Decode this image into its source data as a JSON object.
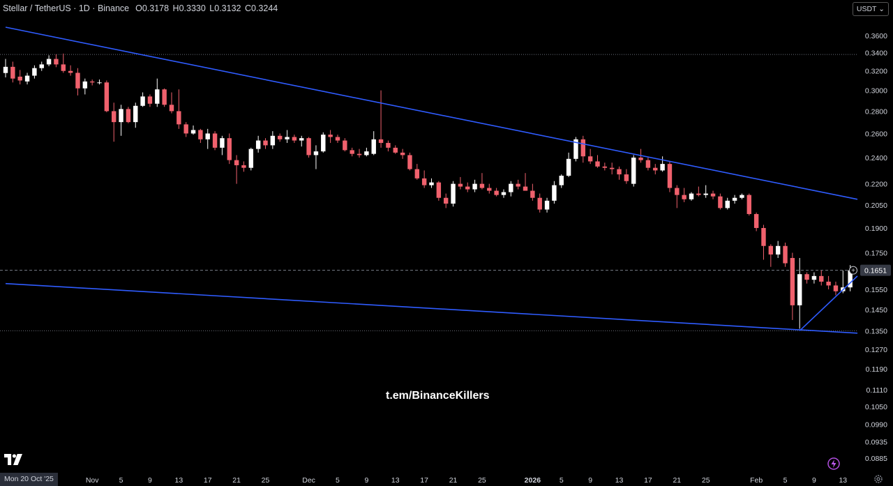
{
  "header": {
    "symbol": "Stellar / TetherUS",
    "interval": "1D",
    "exchange": "Binance",
    "open_label": "O",
    "open": "0.3178",
    "high_label": "H",
    "high": "0.3330",
    "low_label": "L",
    "low": "0.3132",
    "close_label": "C",
    "close": "0.3244"
  },
  "currency_button": "USDT",
  "watermark": "t.em/BinanceKillers",
  "date_chip": "Mon 20 Oct '25",
  "colors": {
    "up": "#ffffff",
    "down": "#f0616d",
    "trendline": "#2f5cff",
    "background": "#000000"
  },
  "icons": [
    "tradingview-logo-icon",
    "plus-circle-icon",
    "lightning-icon",
    "settings-icon"
  ],
  "chart_data": {
    "type": "candlestick",
    "title": "Stellar / TetherUS · 1D · Binance",
    "y_scale": "log",
    "ylim": [
      0.0875,
      0.37
    ],
    "y_ticks": [
      "0.3600",
      "0.3400",
      "0.3200",
      "0.3000",
      "0.2800",
      "0.2600",
      "0.2400",
      "0.2200",
      "0.2050",
      "0.1900",
      "0.1750",
      "0.1550",
      "0.1450",
      "0.1350",
      "0.1270",
      "0.1190",
      "0.1110",
      "0.1050",
      "0.0990",
      "0.0935",
      "0.0885"
    ],
    "x_ticks": [
      {
        "label": "Nov",
        "date": "2025-11-01"
      },
      {
        "label": "5",
        "date": "2025-11-05"
      },
      {
        "label": "9",
        "date": "2025-11-09"
      },
      {
        "label": "13",
        "date": "2025-11-13"
      },
      {
        "label": "17",
        "date": "2025-11-17"
      },
      {
        "label": "21",
        "date": "2025-11-21"
      },
      {
        "label": "25",
        "date": "2025-11-25"
      },
      {
        "label": "Dec",
        "date": "2025-12-01"
      },
      {
        "label": "5",
        "date": "2025-12-05"
      },
      {
        "label": "9",
        "date": "2025-12-09"
      },
      {
        "label": "13",
        "date": "2025-12-13"
      },
      {
        "label": "17",
        "date": "2025-12-17"
      },
      {
        "label": "21",
        "date": "2025-12-21"
      },
      {
        "label": "25",
        "date": "2025-12-25"
      },
      {
        "label": "2026",
        "date": "2026-01-01"
      },
      {
        "label": "5",
        "date": "2026-01-05"
      },
      {
        "label": "9",
        "date": "2026-01-09"
      },
      {
        "label": "13",
        "date": "2026-01-13"
      },
      {
        "label": "17",
        "date": "2026-01-17"
      },
      {
        "label": "21",
        "date": "2026-01-21"
      },
      {
        "label": "25",
        "date": "2026-01-25"
      },
      {
        "label": "Feb",
        "date": "2026-02-01"
      },
      {
        "label": "5",
        "date": "2026-02-05"
      },
      {
        "label": "9",
        "date": "2026-02-09"
      },
      {
        "label": "13",
        "date": "2026-02-13"
      }
    ],
    "x_range": [
      "2025-10-20",
      "2026-02-15"
    ],
    "price_label": "0.1651",
    "dotted_levels": [
      0.338,
      0.1351
    ],
    "candles": [
      {
        "date": "2025-10-20",
        "o": 0.3178,
        "h": 0.333,
        "l": 0.3132,
        "c": 0.3244
      },
      {
        "date": "2025-10-21",
        "o": 0.3244,
        "h": 0.33,
        "l": 0.308,
        "c": 0.312
      },
      {
        "date": "2025-10-22",
        "o": 0.314,
        "h": 0.321,
        "l": 0.306,
        "c": 0.31
      },
      {
        "date": "2025-10-23",
        "o": 0.309,
        "h": 0.318,
        "l": 0.306,
        "c": 0.315
      },
      {
        "date": "2025-10-24",
        "o": 0.315,
        "h": 0.326,
        "l": 0.312,
        "c": 0.323
      },
      {
        "date": "2025-10-25",
        "o": 0.323,
        "h": 0.33,
        "l": 0.32,
        "c": 0.327
      },
      {
        "date": "2025-10-26",
        "o": 0.327,
        "h": 0.337,
        "l": 0.325,
        "c": 0.333
      },
      {
        "date": "2025-10-27",
        "o": 0.333,
        "h": 0.338,
        "l": 0.324,
        "c": 0.327
      },
      {
        "date": "2025-10-28",
        "o": 0.327,
        "h": 0.339,
        "l": 0.318,
        "c": 0.32
      },
      {
        "date": "2025-10-29",
        "o": 0.32,
        "h": 0.326,
        "l": 0.315,
        "c": 0.318
      },
      {
        "date": "2025-10-30",
        "o": 0.318,
        "h": 0.323,
        "l": 0.295,
        "c": 0.302
      },
      {
        "date": "2025-10-31",
        "o": 0.302,
        "h": 0.312,
        "l": 0.296,
        "c": 0.309
      },
      {
        "date": "2025-11-01",
        "o": 0.309,
        "h": 0.311,
        "l": 0.305,
        "c": 0.308
      },
      {
        "date": "2025-11-02",
        "o": 0.308,
        "h": 0.311,
        "l": 0.306,
        "c": 0.308
      },
      {
        "date": "2025-11-03",
        "o": 0.308,
        "h": 0.31,
        "l": 0.279,
        "c": 0.28
      },
      {
        "date": "2025-11-04",
        "o": 0.28,
        "h": 0.288,
        "l": 0.253,
        "c": 0.27
      },
      {
        "date": "2025-11-05",
        "o": 0.27,
        "h": 0.286,
        "l": 0.258,
        "c": 0.282
      },
      {
        "date": "2025-11-06",
        "o": 0.282,
        "h": 0.284,
        "l": 0.269,
        "c": 0.27
      },
      {
        "date": "2025-11-07",
        "o": 0.27,
        "h": 0.288,
        "l": 0.265,
        "c": 0.285
      },
      {
        "date": "2025-11-08",
        "o": 0.285,
        "h": 0.298,
        "l": 0.284,
        "c": 0.294
      },
      {
        "date": "2025-11-09",
        "o": 0.294,
        "h": 0.296,
        "l": 0.284,
        "c": 0.287
      },
      {
        "date": "2025-11-10",
        "o": 0.287,
        "h": 0.312,
        "l": 0.284,
        "c": 0.301
      },
      {
        "date": "2025-11-11",
        "o": 0.301,
        "h": 0.302,
        "l": 0.284,
        "c": 0.286
      },
      {
        "date": "2025-11-12",
        "o": 0.286,
        "h": 0.298,
        "l": 0.278,
        "c": 0.28
      },
      {
        "date": "2025-11-13",
        "o": 0.28,
        "h": 0.301,
        "l": 0.264,
        "c": 0.268
      },
      {
        "date": "2025-11-14",
        "o": 0.268,
        "h": 0.27,
        "l": 0.257,
        "c": 0.26
      },
      {
        "date": "2025-11-15",
        "o": 0.26,
        "h": 0.267,
        "l": 0.259,
        "c": 0.263
      },
      {
        "date": "2025-11-16",
        "o": 0.263,
        "h": 0.264,
        "l": 0.252,
        "c": 0.255
      },
      {
        "date": "2025-11-17",
        "o": 0.255,
        "h": 0.264,
        "l": 0.247,
        "c": 0.26
      },
      {
        "date": "2025-11-18",
        "o": 0.26,
        "h": 0.262,
        "l": 0.246,
        "c": 0.248
      },
      {
        "date": "2025-11-19",
        "o": 0.248,
        "h": 0.258,
        "l": 0.242,
        "c": 0.256
      },
      {
        "date": "2025-11-20",
        "o": 0.256,
        "h": 0.26,
        "l": 0.235,
        "c": 0.238
      },
      {
        "date": "2025-11-21",
        "o": 0.238,
        "h": 0.242,
        "l": 0.22,
        "c": 0.234
      },
      {
        "date": "2025-11-22",
        "o": 0.234,
        "h": 0.237,
        "l": 0.229,
        "c": 0.232
      },
      {
        "date": "2025-11-23",
        "o": 0.232,
        "h": 0.248,
        "l": 0.23,
        "c": 0.247
      },
      {
        "date": "2025-11-24",
        "o": 0.247,
        "h": 0.258,
        "l": 0.244,
        "c": 0.254
      },
      {
        "date": "2025-11-25",
        "o": 0.254,
        "h": 0.256,
        "l": 0.247,
        "c": 0.25
      },
      {
        "date": "2025-11-26",
        "o": 0.25,
        "h": 0.262,
        "l": 0.247,
        "c": 0.258
      },
      {
        "date": "2025-11-27",
        "o": 0.258,
        "h": 0.26,
        "l": 0.253,
        "c": 0.255
      },
      {
        "date": "2025-11-28",
        "o": 0.255,
        "h": 0.263,
        "l": 0.252,
        "c": 0.257
      },
      {
        "date": "2025-11-29",
        "o": 0.257,
        "h": 0.259,
        "l": 0.252,
        "c": 0.254
      },
      {
        "date": "2025-11-30",
        "o": 0.254,
        "h": 0.258,
        "l": 0.249,
        "c": 0.256
      },
      {
        "date": "2025-12-01",
        "o": 0.256,
        "h": 0.257,
        "l": 0.24,
        "c": 0.242
      },
      {
        "date": "2025-12-02",
        "o": 0.242,
        "h": 0.25,
        "l": 0.231,
        "c": 0.245
      },
      {
        "date": "2025-12-03",
        "o": 0.245,
        "h": 0.261,
        "l": 0.244,
        "c": 0.259
      },
      {
        "date": "2025-12-04",
        "o": 0.259,
        "h": 0.263,
        "l": 0.252,
        "c": 0.257
      },
      {
        "date": "2025-12-05",
        "o": 0.257,
        "h": 0.259,
        "l": 0.252,
        "c": 0.254
      },
      {
        "date": "2025-12-06",
        "o": 0.254,
        "h": 0.256,
        "l": 0.245,
        "c": 0.246
      },
      {
        "date": "2025-12-07",
        "o": 0.246,
        "h": 0.248,
        "l": 0.241,
        "c": 0.243
      },
      {
        "date": "2025-12-08",
        "o": 0.243,
        "h": 0.247,
        "l": 0.24,
        "c": 0.242
      },
      {
        "date": "2025-12-09",
        "o": 0.242,
        "h": 0.248,
        "l": 0.241,
        "c": 0.245
      },
      {
        "date": "2025-12-10",
        "o": 0.243,
        "h": 0.262,
        "l": 0.242,
        "c": 0.255
      },
      {
        "date": "2025-12-11",
        "o": 0.255,
        "h": 0.3,
        "l": 0.248,
        "c": 0.252
      },
      {
        "date": "2025-12-12",
        "o": 0.252,
        "h": 0.254,
        "l": 0.245,
        "c": 0.248
      },
      {
        "date": "2025-12-13",
        "o": 0.248,
        "h": 0.25,
        "l": 0.243,
        "c": 0.244
      },
      {
        "date": "2025-12-14",
        "o": 0.244,
        "h": 0.247,
        "l": 0.239,
        "c": 0.242
      },
      {
        "date": "2025-12-15",
        "o": 0.242,
        "h": 0.244,
        "l": 0.23,
        "c": 0.231
      },
      {
        "date": "2025-12-16",
        "o": 0.231,
        "h": 0.235,
        "l": 0.223,
        "c": 0.224
      },
      {
        "date": "2025-12-17",
        "o": 0.224,
        "h": 0.23,
        "l": 0.217,
        "c": 0.219
      },
      {
        "date": "2025-12-18",
        "o": 0.219,
        "h": 0.224,
        "l": 0.217,
        "c": 0.221
      },
      {
        "date": "2025-12-19",
        "o": 0.221,
        "h": 0.222,
        "l": 0.208,
        "c": 0.21
      },
      {
        "date": "2025-12-20",
        "o": 0.21,
        "h": 0.213,
        "l": 0.203,
        "c": 0.206
      },
      {
        "date": "2025-12-21",
        "o": 0.206,
        "h": 0.222,
        "l": 0.204,
        "c": 0.22
      },
      {
        "date": "2025-12-22",
        "o": 0.22,
        "h": 0.225,
        "l": 0.216,
        "c": 0.218
      },
      {
        "date": "2025-12-23",
        "o": 0.218,
        "h": 0.221,
        "l": 0.214,
        "c": 0.216
      },
      {
        "date": "2025-12-24",
        "o": 0.216,
        "h": 0.223,
        "l": 0.214,
        "c": 0.22
      },
      {
        "date": "2025-12-25",
        "o": 0.22,
        "h": 0.228,
        "l": 0.216,
        "c": 0.217
      },
      {
        "date": "2025-12-26",
        "o": 0.217,
        "h": 0.22,
        "l": 0.213,
        "c": 0.215
      },
      {
        "date": "2025-12-27",
        "o": 0.215,
        "h": 0.217,
        "l": 0.211,
        "c": 0.212
      },
      {
        "date": "2025-12-28",
        "o": 0.212,
        "h": 0.216,
        "l": 0.21,
        "c": 0.214
      },
      {
        "date": "2025-12-29",
        "o": 0.214,
        "h": 0.222,
        "l": 0.211,
        "c": 0.22
      },
      {
        "date": "2025-12-30",
        "o": 0.22,
        "h": 0.223,
        "l": 0.216,
        "c": 0.218
      },
      {
        "date": "2025-12-31",
        "o": 0.218,
        "h": 0.228,
        "l": 0.216,
        "c": 0.215
      },
      {
        "date": "2026-01-01",
        "o": 0.215,
        "h": 0.22,
        "l": 0.208,
        "c": 0.21
      },
      {
        "date": "2026-01-02",
        "o": 0.21,
        "h": 0.213,
        "l": 0.2,
        "c": 0.202
      },
      {
        "date": "2026-01-03",
        "o": 0.202,
        "h": 0.21,
        "l": 0.2,
        "c": 0.208
      },
      {
        "date": "2026-01-04",
        "o": 0.208,
        "h": 0.222,
        "l": 0.206,
        "c": 0.219
      },
      {
        "date": "2026-01-05",
        "o": 0.219,
        "h": 0.227,
        "l": 0.217,
        "c": 0.226
      },
      {
        "date": "2026-01-06",
        "o": 0.226,
        "h": 0.244,
        "l": 0.225,
        "c": 0.239
      },
      {
        "date": "2026-01-07",
        "o": 0.239,
        "h": 0.257,
        "l": 0.237,
        "c": 0.255
      },
      {
        "date": "2026-01-08",
        "o": 0.255,
        "h": 0.258,
        "l": 0.236,
        "c": 0.241
      },
      {
        "date": "2026-01-09",
        "o": 0.241,
        "h": 0.247,
        "l": 0.235,
        "c": 0.237
      },
      {
        "date": "2026-01-10",
        "o": 0.237,
        "h": 0.242,
        "l": 0.232,
        "c": 0.233
      },
      {
        "date": "2026-01-11",
        "o": 0.233,
        "h": 0.236,
        "l": 0.23,
        "c": 0.232
      },
      {
        "date": "2026-01-12",
        "o": 0.232,
        "h": 0.236,
        "l": 0.227,
        "c": 0.231
      },
      {
        "date": "2026-01-13",
        "o": 0.231,
        "h": 0.233,
        "l": 0.223,
        "c": 0.227
      },
      {
        "date": "2026-01-14",
        "o": 0.227,
        "h": 0.231,
        "l": 0.22,
        "c": 0.222
      },
      {
        "date": "2026-01-15",
        "o": 0.22,
        "h": 0.242,
        "l": 0.218,
        "c": 0.24
      },
      {
        "date": "2026-01-16",
        "o": 0.24,
        "h": 0.247,
        "l": 0.236,
        "c": 0.238
      },
      {
        "date": "2026-01-17",
        "o": 0.238,
        "h": 0.24,
        "l": 0.23,
        "c": 0.232
      },
      {
        "date": "2026-01-18",
        "o": 0.232,
        "h": 0.235,
        "l": 0.227,
        "c": 0.23
      },
      {
        "date": "2026-01-19",
        "o": 0.23,
        "h": 0.241,
        "l": 0.229,
        "c": 0.235
      },
      {
        "date": "2026-01-20",
        "o": 0.235,
        "h": 0.237,
        "l": 0.214,
        "c": 0.217
      },
      {
        "date": "2026-01-21",
        "o": 0.217,
        "h": 0.219,
        "l": 0.203,
        "c": 0.212
      },
      {
        "date": "2026-01-22",
        "o": 0.212,
        "h": 0.217,
        "l": 0.207,
        "c": 0.209
      },
      {
        "date": "2026-01-23",
        "o": 0.209,
        "h": 0.214,
        "l": 0.208,
        "c": 0.213
      },
      {
        "date": "2026-01-24",
        "o": 0.213,
        "h": 0.218,
        "l": 0.211,
        "c": 0.212
      },
      {
        "date": "2026-01-25",
        "o": 0.212,
        "h": 0.219,
        "l": 0.21,
        "c": 0.213
      },
      {
        "date": "2026-01-26",
        "o": 0.213,
        "h": 0.215,
        "l": 0.209,
        "c": 0.211
      },
      {
        "date": "2026-01-27",
        "o": 0.211,
        "h": 0.213,
        "l": 0.202,
        "c": 0.203
      },
      {
        "date": "2026-01-28",
        "o": 0.203,
        "h": 0.21,
        "l": 0.202,
        "c": 0.208
      },
      {
        "date": "2026-01-29",
        "o": 0.208,
        "h": 0.212,
        "l": 0.206,
        "c": 0.21
      },
      {
        "date": "2026-01-30",
        "o": 0.21,
        "h": 0.213,
        "l": 0.209,
        "c": 0.212
      },
      {
        "date": "2026-01-31",
        "o": 0.212,
        "h": 0.213,
        "l": 0.198,
        "c": 0.199
      },
      {
        "date": "2026-02-01",
        "o": 0.199,
        "h": 0.2,
        "l": 0.188,
        "c": 0.19
      },
      {
        "date": "2026-02-02",
        "o": 0.19,
        "h": 0.192,
        "l": 0.171,
        "c": 0.179
      },
      {
        "date": "2026-02-03",
        "o": 0.179,
        "h": 0.18,
        "l": 0.167,
        "c": 0.174
      },
      {
        "date": "2026-02-04",
        "o": 0.174,
        "h": 0.182,
        "l": 0.172,
        "c": 0.179
      },
      {
        "date": "2026-02-05",
        "o": 0.179,
        "h": 0.181,
        "l": 0.167,
        "c": 0.169
      },
      {
        "date": "2026-02-06",
        "o": 0.172,
        "h": 0.175,
        "l": 0.14,
        "c": 0.147
      },
      {
        "date": "2026-02-07",
        "o": 0.147,
        "h": 0.172,
        "l": 0.136,
        "c": 0.163
      },
      {
        "date": "2026-02-08",
        "o": 0.163,
        "h": 0.164,
        "l": 0.158,
        "c": 0.16
      },
      {
        "date": "2026-02-09",
        "o": 0.16,
        "h": 0.164,
        "l": 0.158,
        "c": 0.162
      },
      {
        "date": "2026-02-10",
        "o": 0.162,
        "h": 0.165,
        "l": 0.157,
        "c": 0.159
      },
      {
        "date": "2026-02-11",
        "o": 0.159,
        "h": 0.162,
        "l": 0.155,
        "c": 0.157
      },
      {
        "date": "2026-02-12",
        "o": 0.157,
        "h": 0.159,
        "l": 0.152,
        "c": 0.154
      },
      {
        "date": "2026-02-13",
        "o": 0.154,
        "h": 0.165,
        "l": 0.153,
        "c": 0.156
      },
      {
        "date": "2026-02-14",
        "o": 0.156,
        "h": 0.168,
        "l": 0.154,
        "c": 0.1651
      }
    ],
    "trendlines": [
      {
        "name": "upper-resistance",
        "from": {
          "date": "2025-10-20",
          "price": 0.37
        },
        "to": {
          "date": "2026-02-15",
          "price": 0.209
        }
      },
      {
        "name": "lower-support",
        "from": {
          "date": "2025-10-20",
          "price": 0.158
        },
        "to": {
          "date": "2026-02-15",
          "price": 0.134
        }
      },
      {
        "name": "short-rising-support",
        "from": {
          "date": "2026-02-07",
          "price": 0.1351
        },
        "to": {
          "date": "2026-02-15",
          "price": 0.162
        }
      }
    ]
  }
}
